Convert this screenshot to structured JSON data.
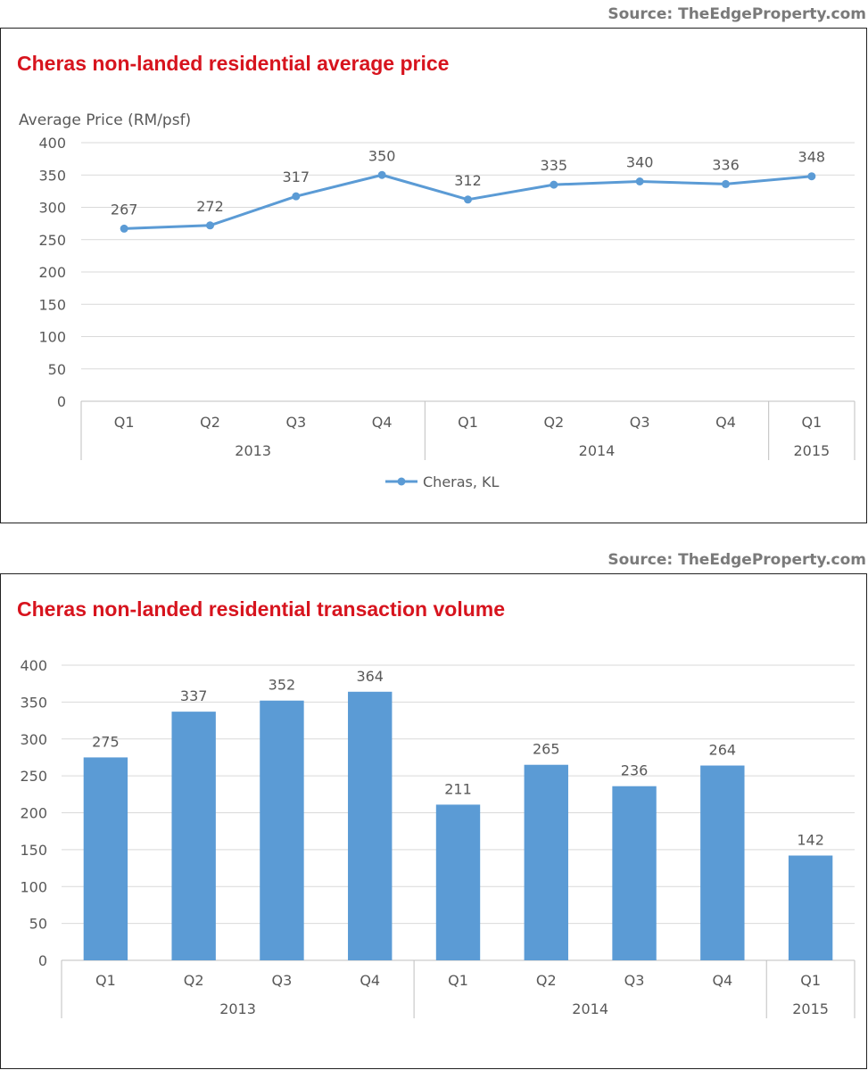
{
  "chart_data": [
    {
      "type": "line",
      "source": "Source: TheEdgeProperty.com",
      "title": "Cheras non-landed residential average price",
      "ylabel": "Average Price (RM/psf)",
      "xlabel": "",
      "ylim": [
        0,
        400
      ],
      "ytick_step": 50,
      "grid": true,
      "legend_position": "bottom",
      "color": "#5B9BD5",
      "categories": [
        "Q1",
        "Q2",
        "Q3",
        "Q4",
        "Q1",
        "Q2",
        "Q3",
        "Q4",
        "Q1"
      ],
      "groups": [
        {
          "label": "2013",
          "count": 4
        },
        {
          "label": "2014",
          "count": 4
        },
        {
          "label": "2015",
          "count": 1
        }
      ],
      "series": [
        {
          "name": "Cheras, KL",
          "values": [
            267,
            272,
            317,
            350,
            312,
            335,
            340,
            336,
            348
          ]
        }
      ]
    },
    {
      "type": "bar",
      "source": "Source: TheEdgeProperty.com",
      "title": "Cheras non-landed residential transaction volume",
      "ylabel": "",
      "xlabel": "",
      "ylim": [
        0,
        400
      ],
      "ytick_step": 50,
      "grid": true,
      "color": "#5B9BD5",
      "categories": [
        "Q1",
        "Q2",
        "Q3",
        "Q4",
        "Q1",
        "Q2",
        "Q3",
        "Q4",
        "Q1"
      ],
      "groups": [
        {
          "label": "2013",
          "count": 4
        },
        {
          "label": "2014",
          "count": 4
        },
        {
          "label": "2015",
          "count": 1
        }
      ],
      "values": [
        275,
        337,
        352,
        364,
        211,
        265,
        236,
        264,
        142
      ]
    }
  ]
}
